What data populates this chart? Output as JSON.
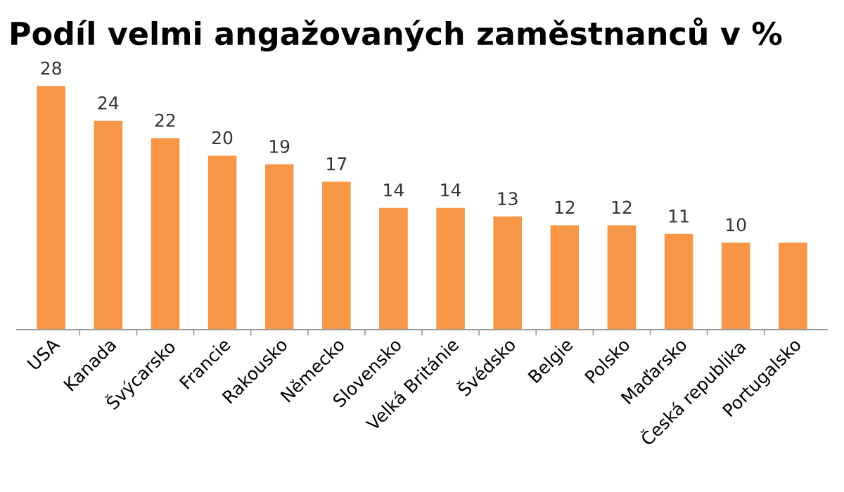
{
  "chart_data": {
    "type": "bar",
    "title": "Podíl velmi angažovaných zaměstnanců v %",
    "categories": [
      "USA",
      "Kanada",
      "Švýcarsko",
      "Francie",
      "Rakousko",
      "Německo",
      "Slovensko",
      "Velká Británie",
      "Švédsko",
      "Belgie",
      "Polsko",
      "Maďarsko",
      "Česká republika",
      "Portugalsko"
    ],
    "values": [
      28,
      24,
      22,
      20,
      19,
      17,
      14,
      14,
      13,
      12,
      12,
      11,
      10,
      10
    ],
    "value_labels": [
      "28",
      "24",
      "22",
      "20",
      "19",
      "17",
      "14",
      "14",
      "13",
      "12",
      "12",
      "11",
      "10",
      null
    ],
    "color": "#f79646",
    "grid": false,
    "legend": false
  }
}
